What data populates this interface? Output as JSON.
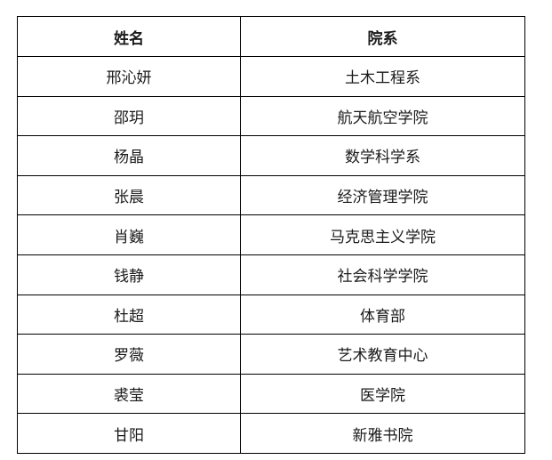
{
  "table": {
    "columns": [
      {
        "label": "姓名"
      },
      {
        "label": "院系"
      }
    ],
    "rows": [
      {
        "name": "邢沁妍",
        "dept": "土木工程系"
      },
      {
        "name": "邵玥",
        "dept": "航天航空学院"
      },
      {
        "name": "杨晶",
        "dept": "数学科学系"
      },
      {
        "name": "张晨",
        "dept": "经济管理学院"
      },
      {
        "name": "肖巍",
        "dept": "马克思主义学院"
      },
      {
        "name": "钱静",
        "dept": "社会科学学院"
      },
      {
        "name": "杜超",
        "dept": "体育部"
      },
      {
        "name": "罗薇",
        "dept": "艺术教育中心"
      },
      {
        "name": "裘莹",
        "dept": "医学院"
      },
      {
        "name": "甘阳",
        "dept": "新雅书院"
      }
    ],
    "colors": {
      "border": "#000000",
      "text": "#1a1a1a",
      "background": "#ffffff"
    }
  }
}
